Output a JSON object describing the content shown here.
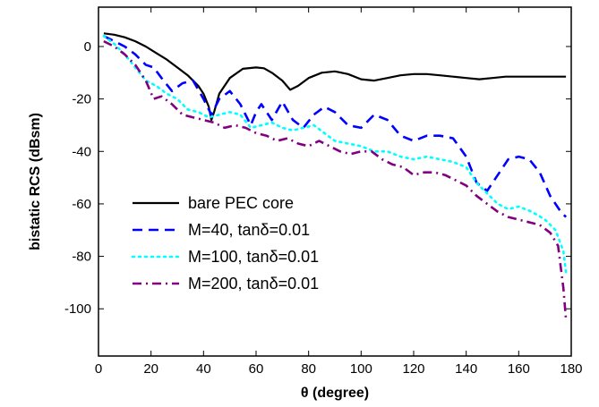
{
  "chart_data": {
    "type": "line",
    "title": "",
    "xlabel": "θ (degree)",
    "ylabel": "bistatic RCS (dBsm)",
    "xlim": [
      0,
      180
    ],
    "ylim": [
      -118,
      15
    ],
    "xticks": [
      0,
      20,
      40,
      60,
      80,
      100,
      120,
      140,
      160,
      180
    ],
    "yticks": [
      0,
      -20,
      -40,
      -60,
      -80,
      -100
    ],
    "grid": false,
    "legend_position": "bottom-left",
    "series": [
      {
        "name": "bare PEC core",
        "color": "#000000",
        "dash": "solid",
        "x": [
          2,
          6,
          10,
          14,
          18,
          22,
          26,
          30,
          34,
          38,
          40,
          42,
          43,
          44,
          46,
          50,
          55,
          60,
          63,
          66,
          70,
          73,
          76,
          80,
          85,
          90,
          95,
          100,
          105,
          110,
          115,
          120,
          125,
          130,
          135,
          140,
          145,
          150,
          155,
          160,
          165,
          170,
          175,
          178
        ],
        "y": [
          5,
          4.5,
          3.5,
          2,
          0,
          -2.5,
          -5,
          -8,
          -11,
          -15,
          -18,
          -23,
          -28,
          -25,
          -18,
          -12,
          -8.5,
          -8,
          -8.3,
          -10,
          -13,
          -16.5,
          -15,
          -12,
          -10,
          -9.5,
          -10.5,
          -12.5,
          -13,
          -12,
          -11,
          -10.5,
          -10.5,
          -11,
          -11.5,
          -12,
          -12.5,
          -12,
          -11.5,
          -11.5,
          -11.5,
          -11.5,
          -11.5,
          -11.5
        ]
      },
      {
        "name": "M=40,   tanδ=0.01",
        "color": "#0000ff",
        "dash": "dash",
        "x": [
          2,
          6,
          10,
          14,
          18,
          21,
          24,
          28,
          32,
          36,
          40,
          43,
          46,
          50,
          54,
          58,
          60,
          62,
          66,
          70,
          74,
          78,
          82,
          86,
          90,
          95,
          100,
          105,
          110,
          115,
          120,
          125,
          130,
          135,
          140,
          144,
          148,
          152,
          156,
          160,
          164,
          168,
          172,
          176,
          178
        ],
        "y": [
          4,
          2,
          0,
          -3,
          -7,
          -8,
          -12,
          -17,
          -14,
          -13,
          -20,
          -26,
          -20,
          -17,
          -22,
          -30,
          -25,
          -22,
          -28,
          -21,
          -28,
          -31,
          -26,
          -23,
          -25,
          -30,
          -31,
          -26,
          -28,
          -34,
          -36,
          -34,
          -34,
          -35,
          -42,
          -52,
          -55,
          -49,
          -43,
          -42,
          -43,
          -48,
          -57,
          -63,
          -65
        ]
      },
      {
        "name": "M=100, tanδ=0.01",
        "color": "#00ffff",
        "dash": "dot",
        "x": [
          2,
          6,
          10,
          14,
          18,
          22,
          26,
          30,
          34,
          38,
          42,
          46,
          50,
          54,
          58,
          62,
          66,
          70,
          74,
          78,
          82,
          86,
          90,
          95,
          100,
          105,
          110,
          115,
          120,
          125,
          130,
          135,
          140,
          144,
          148,
          152,
          156,
          160,
          165,
          170,
          174,
          177,
          178
        ],
        "y": [
          4,
          1,
          -3,
          -8,
          -13,
          -15,
          -18,
          -20,
          -24,
          -25,
          -27,
          -26,
          -25,
          -26,
          -31,
          -30,
          -29,
          -31,
          -32,
          -31,
          -30,
          -33,
          -36,
          -37,
          -38,
          -40,
          -40,
          -42,
          -43,
          -42,
          -43,
          -44,
          -46,
          -52,
          -56,
          -60,
          -62,
          -61,
          -63,
          -66,
          -70,
          -78,
          -86
        ]
      },
      {
        "name": "M=200, tanδ=0.01",
        "color": "#800080",
        "dash": "dashdot",
        "x": [
          2,
          6,
          10,
          14,
          18,
          21,
          24,
          28,
          32,
          36,
          40,
          44,
          48,
          52,
          56,
          60,
          64,
          68,
          72,
          76,
          80,
          84,
          88,
          92,
          96,
          100,
          104,
          108,
          112,
          116,
          120,
          124,
          128,
          132,
          136,
          140,
          144,
          148,
          152,
          156,
          160,
          164,
          168,
          172,
          175,
          177,
          178
        ],
        "y": [
          2,
          0,
          -3,
          -7,
          -13,
          -20,
          -19,
          -22,
          -26,
          -27,
          -28,
          -29,
          -31,
          -30,
          -31,
          -33,
          -34,
          -36,
          -35,
          -37,
          -38,
          -36,
          -38,
          -40,
          -41,
          -40,
          -40,
          -43,
          -45,
          -46,
          -49,
          -48,
          -48,
          -49,
          -51,
          -53,
          -57,
          -60,
          -63,
          -65,
          -66,
          -67,
          -68,
          -71,
          -76,
          -92,
          -104
        ]
      }
    ]
  }
}
